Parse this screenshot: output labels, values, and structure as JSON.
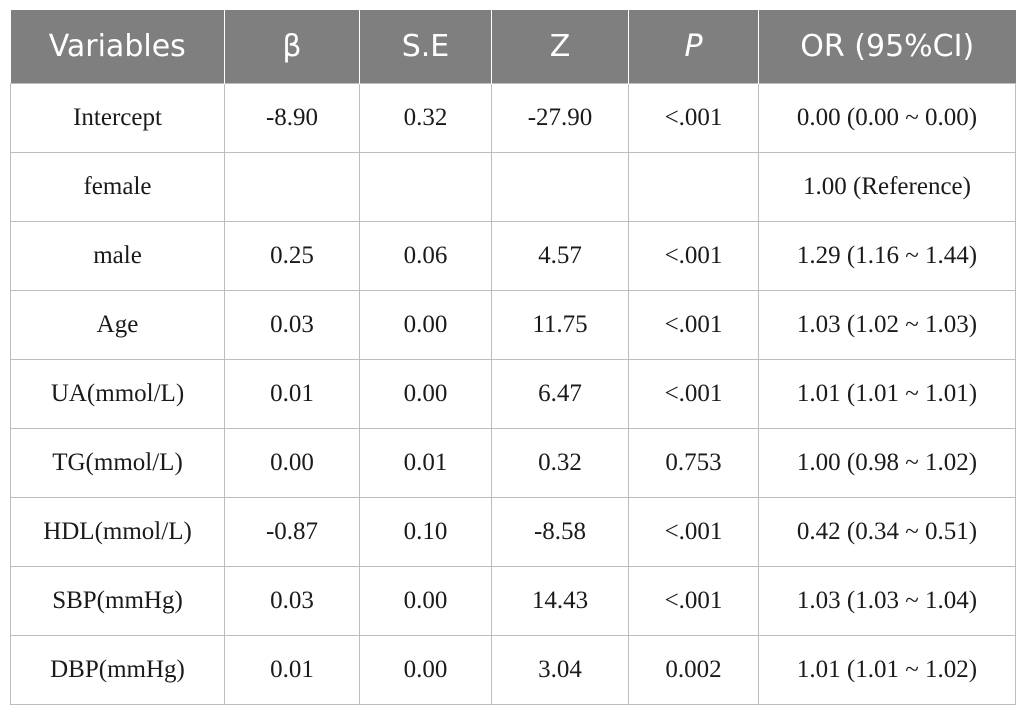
{
  "table": {
    "headers": [
      "Variables",
      "β",
      "S.E",
      "Z",
      "P",
      "OR (95%CI)"
    ],
    "rows": [
      [
        "Intercept",
        "-8.90",
        "0.32",
        "-27.90",
        "<.001",
        "0.00 (0.00 ~ 0.00)"
      ],
      [
        "female",
        "",
        "",
        "",
        "",
        "1.00 (Reference)"
      ],
      [
        "male",
        "0.25",
        "0.06",
        "4.57",
        "<.001",
        "1.29 (1.16 ~ 1.44)"
      ],
      [
        "Age",
        "0.03",
        "0.00",
        "11.75",
        "<.001",
        "1.03 (1.02 ~ 1.03)"
      ],
      [
        "UA(mmol/L)",
        "0.01",
        "0.00",
        "6.47",
        "<.001",
        "1.01 (1.01 ~ 1.01)"
      ],
      [
        "TG(mmol/L)",
        "0.00",
        "0.01",
        "0.32",
        "0.753",
        "1.00 (0.98 ~ 1.02)"
      ],
      [
        "HDL(mmol/L)",
        "-0.87",
        "0.10",
        "-8.58",
        "<.001",
        "0.42 (0.34 ~ 0.51)"
      ],
      [
        "SBP(mmHg)",
        "0.03",
        "0.00",
        "14.43",
        "<.001",
        "1.03 (1.03 ~ 1.04)"
      ],
      [
        "DBP(mmHg)",
        "0.01",
        "0.00",
        "3.04",
        "0.002",
        "1.01 (1.01 ~ 1.02)"
      ]
    ]
  }
}
